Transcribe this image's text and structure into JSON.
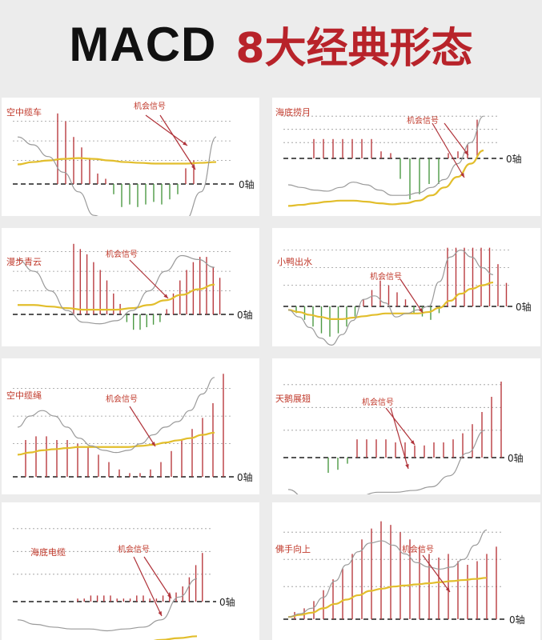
{
  "page_title": {
    "left": "MACD",
    "right": "8大经典形态"
  },
  "colors": {
    "bar_up": "#b93a3f",
    "bar_down": "#4c9a44",
    "macd_line": "#9a9a9a",
    "signal_line": "#e2be2c",
    "label": "#c0392b",
    "arrow": "#b0333a",
    "axis": "#555555",
    "grid": "#999999"
  },
  "chart_data": [
    {
      "type": "bar",
      "title": "空中缆车",
      "signal_label": "机会信号",
      "zero_label": "0轴",
      "ylim": [
        -10,
        30
      ],
      "values": [
        27,
        24,
        18,
        14,
        10,
        4,
        2,
        -4,
        -9,
        -8,
        -9,
        -8,
        -7,
        -8,
        -6,
        -4,
        6,
        9
      ]
    },
    {
      "type": "bar",
      "title": "海底捞月",
      "signal_label": "机会信号",
      "zero_label": "0轴",
      "ylim": [
        -10,
        30
      ],
      "values": [
        11,
        11,
        11,
        11,
        11,
        11,
        11,
        4,
        3,
        -4,
        -8,
        -7,
        -5,
        -5,
        3,
        4,
        8,
        22
      ]
    },
    {
      "type": "bar",
      "title": "漫步青云",
      "signal_label": "机会信号",
      "zero_label": "0轴",
      "ylim": [
        -10,
        30
      ],
      "values": [
        27,
        25,
        23,
        20,
        17,
        13,
        8,
        4,
        -3,
        -6,
        -6,
        -5,
        -4,
        -3,
        2,
        8,
        13,
        17,
        20,
        22,
        22,
        18,
        14
      ]
    },
    {
      "type": "bar",
      "title": "小鸭出水",
      "signal_label": "机会信号",
      "zero_label": "0轴",
      "ylim": [
        -10,
        30
      ],
      "values": [
        -2,
        -4,
        -6,
        -8,
        -9,
        -8,
        -6,
        -3,
        3,
        7,
        11,
        9,
        6,
        3,
        -2,
        -3,
        -4,
        -2,
        25,
        25,
        25,
        25,
        25,
        25,
        18,
        10
      ]
    },
    {
      "type": "bar",
      "title": "空中缆绳",
      "signal_label": "机会信号",
      "zero_label": "0轴",
      "ylim": [
        -5,
        30
      ],
      "values": [
        10,
        11,
        11,
        10,
        10,
        9,
        8,
        6,
        4,
        2,
        1,
        1,
        2,
        4,
        7,
        10,
        13,
        16,
        20,
        28
      ]
    },
    {
      "type": "bar",
      "title": "天鹅展翅",
      "signal_label": "机会信号",
      "zero_label": "0轴",
      "ylim": [
        -10,
        30
      ],
      "values": [
        -5,
        -4,
        -2,
        6,
        6,
        6,
        6,
        5,
        5,
        4,
        4,
        5,
        5,
        6,
        8,
        11,
        15,
        20,
        25,
        30
      ]
    },
    {
      "type": "bar",
      "title": "海底电缆",
      "signal_label": "机会信号",
      "zero_label": "0轴",
      "ylim": [
        -5,
        30
      ],
      "values": [
        1,
        1,
        2,
        2,
        2,
        2,
        1,
        1,
        1,
        2,
        2,
        1,
        1,
        2,
        3,
        3,
        5,
        8,
        12,
        16
      ]
    },
    {
      "type": "bar",
      "title": "佛手向上",
      "signal_label": "机会信号",
      "zero_label": "0轴",
      "ylim": [
        0,
        30
      ],
      "values": [
        2,
        3,
        5,
        8,
        11,
        14,
        18,
        22,
        25,
        27,
        26,
        24,
        22,
        20,
        18,
        17,
        18,
        16,
        15,
        16,
        18,
        20,
        22,
        24,
        28
      ]
    }
  ]
}
